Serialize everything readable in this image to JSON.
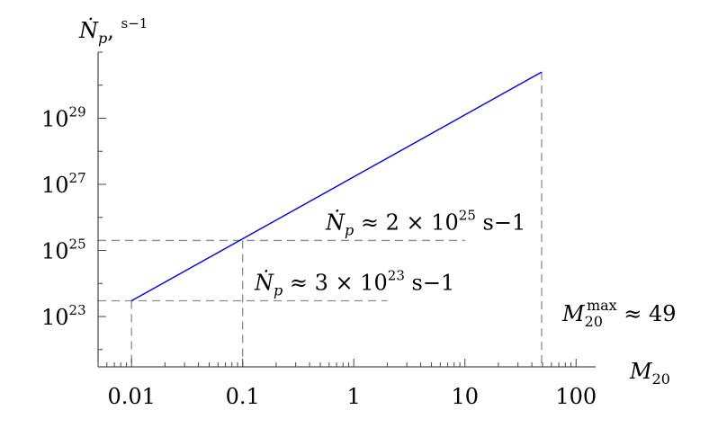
{
  "chart_data": {
    "type": "line",
    "x_scale": "log",
    "y_scale": "log",
    "xlim": [
      0.005,
      150
    ],
    "ylim": [
      3e+21,
      1e+31
    ],
    "xlabel": "M20",
    "ylabel": "Ṅp, s−1",
    "x_ticks": [
      {
        "value": 0.01,
        "label": "0.01"
      },
      {
        "value": 0.1,
        "label": "0.1"
      },
      {
        "value": 1,
        "label": "1"
      },
      {
        "value": 10,
        "label": "10"
      },
      {
        "value": 100,
        "label": "100"
      }
    ],
    "y_ticks": [
      {
        "value": 1e+23,
        "label": "10",
        "exp": "23"
      },
      {
        "value": 1e+25,
        "label": "10",
        "exp": "25"
      },
      {
        "value": 1e+27,
        "label": "10",
        "exp": "27"
      },
      {
        "value": 1e+29,
        "label": "10",
        "exp": "29"
      }
    ],
    "series": [
      {
        "x": [
          0.01,
          49
        ],
        "y": [
          3e+23,
          2.5e+30
        ],
        "color": "#0000e0"
      }
    ],
    "reference_lines": [
      {
        "x": 0.01,
        "y": 3e+23,
        "h_to": 2
      },
      {
        "x": 0.1,
        "y": 2e+25,
        "h_to": 10
      },
      {
        "x": 49,
        "y": 2.5e+30,
        "h_to": null
      }
    ],
    "annotations": [
      {
        "id": "rate-high",
        "text": "Ṅp ≈ 2 × 10",
        "sup": "25",
        "tail": " s−1"
      },
      {
        "id": "rate-low",
        "text": "Ṅp ≈ 3 × 10",
        "sup": "23",
        "tail": " s−1"
      },
      {
        "id": "max-mass",
        "text": "M20",
        "sup": "max",
        "tail": " ≈ 49"
      }
    ]
  }
}
